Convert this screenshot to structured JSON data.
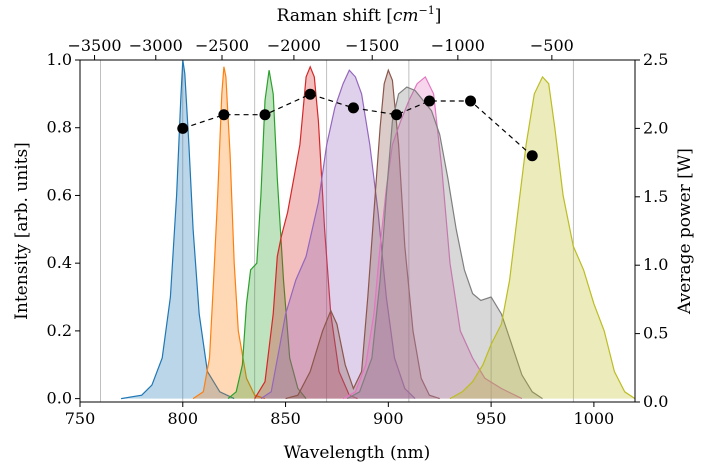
{
  "chart_data": {
    "type": "area",
    "xlabel": "Wavelength (nm)",
    "ylabel": "Intensity [arb. units]",
    "y2label": "Average power [W]",
    "top_xlabel_prefix": "Raman shift [",
    "top_xlabel_unit": "cm",
    "top_xlabel_exp": "−1",
    "top_xlabel_suffix": "]",
    "xlim": [
      750,
      1020
    ],
    "ylim": [
      -0.01,
      1.0
    ],
    "y2lim": [
      0.0,
      2.5
    ],
    "x_ticks": [
      750,
      800,
      850,
      900,
      950,
      1000
    ],
    "x_tick_labels": [
      "750",
      "800",
      "850",
      "900",
      "950",
      "1000"
    ],
    "y_ticks": [
      0.0,
      0.2,
      0.4,
      0.6,
      0.8,
      1.0
    ],
    "y_tick_labels": [
      "0.0",
      "0.2",
      "0.4",
      "0.6",
      "0.8",
      "1.0"
    ],
    "y2_ticks": [
      0.0,
      0.5,
      1.0,
      1.5,
      2.0,
      2.5
    ],
    "y2_tick_labels": [
      "0.0",
      "0.5",
      "1.0",
      "1.5",
      "2.0",
      "2.5"
    ],
    "raman_pump_nm": 1030,
    "top_ticks": [
      -3500,
      -3000,
      -2500,
      -2000,
      -1500,
      -1000,
      -500
    ],
    "top_tick_labels": [
      "−3500",
      "−3000",
      "−2500",
      "−2000",
      "−1500",
      "−1000",
      "−500"
    ],
    "grid_x": [
      760,
      800,
      835,
      870,
      910,
      950,
      990
    ],
    "series": [
      {
        "color": "#1f77b4",
        "points": [
          [
            770,
            0
          ],
          [
            780,
            0.01
          ],
          [
            785,
            0.04
          ],
          [
            790,
            0.12
          ],
          [
            794,
            0.3
          ],
          [
            797,
            0.6
          ],
          [
            799,
            0.88
          ],
          [
            800,
            1.0
          ],
          [
            801,
            0.96
          ],
          [
            803,
            0.75
          ],
          [
            805,
            0.5
          ],
          [
            808,
            0.25
          ],
          [
            812,
            0.08
          ],
          [
            818,
            0.02
          ],
          [
            825,
            0
          ]
        ]
      },
      {
        "color": "#ff7f0e",
        "points": [
          [
            805,
            0
          ],
          [
            810,
            0.02
          ],
          [
            813,
            0.12
          ],
          [
            815,
            0.35
          ],
          [
            817,
            0.6
          ],
          [
            819,
            0.9
          ],
          [
            820,
            0.98
          ],
          [
            821,
            0.95
          ],
          [
            823,
            0.72
          ],
          [
            825,
            0.4
          ],
          [
            827,
            0.2
          ],
          [
            831,
            0.06
          ],
          [
            835,
            0.01
          ],
          [
            840,
            0
          ]
        ]
      },
      {
        "color": "#2ca02c",
        "points": [
          [
            822,
            0
          ],
          [
            826,
            0.02
          ],
          [
            829,
            0.1
          ],
          [
            831,
            0.28
          ],
          [
            833,
            0.38
          ],
          [
            836,
            0.4
          ],
          [
            838,
            0.6
          ],
          [
            840,
            0.88
          ],
          [
            842,
            0.97
          ],
          [
            844,
            0.9
          ],
          [
            846,
            0.65
          ],
          [
            849,
            0.35
          ],
          [
            852,
            0.12
          ],
          [
            856,
            0.03
          ],
          [
            860,
            0
          ]
        ]
      },
      {
        "color": "#d62728",
        "points": [
          [
            835,
            0
          ],
          [
            840,
            0.05
          ],
          [
            844,
            0.25
          ],
          [
            846,
            0.42
          ],
          [
            848,
            0.48
          ],
          [
            851,
            0.55
          ],
          [
            854,
            0.65
          ],
          [
            857,
            0.75
          ],
          [
            860,
            0.95
          ],
          [
            862,
            0.98
          ],
          [
            864,
            0.95
          ],
          [
            866,
            0.82
          ],
          [
            869,
            0.5
          ],
          [
            872,
            0.25
          ],
          [
            876,
            0.08
          ],
          [
            881,
            0.01
          ],
          [
            885,
            0
          ]
        ]
      },
      {
        "color": "#9467bd",
        "points": [
          [
            838,
            0
          ],
          [
            843,
            0.02
          ],
          [
            847,
            0.15
          ],
          [
            850,
            0.25
          ],
          [
            855,
            0.35
          ],
          [
            860,
            0.42
          ],
          [
            866,
            0.58
          ],
          [
            870,
            0.75
          ],
          [
            874,
            0.86
          ],
          [
            878,
            0.93
          ],
          [
            881,
            0.97
          ],
          [
            884,
            0.95
          ],
          [
            887,
            0.9
          ],
          [
            891,
            0.75
          ],
          [
            895,
            0.55
          ],
          [
            899,
            0.3
          ],
          [
            903,
            0.12
          ],
          [
            908,
            0.03
          ],
          [
            913,
            0
          ]
        ]
      },
      {
        "color": "#8c564b",
        "points": [
          [
            850,
            0
          ],
          [
            856,
            0.01
          ],
          [
            862,
            0.08
          ],
          [
            868,
            0.2
          ],
          [
            872,
            0.26
          ],
          [
            875,
            0.22
          ],
          [
            879,
            0.1
          ],
          [
            883,
            0.03
          ],
          [
            887,
            0.08
          ],
          [
            890,
            0.3
          ],
          [
            893,
            0.55
          ],
          [
            896,
            0.8
          ],
          [
            898,
            0.93
          ],
          [
            900,
            0.97
          ],
          [
            902,
            0.94
          ],
          [
            905,
            0.75
          ],
          [
            908,
            0.45
          ],
          [
            912,
            0.2
          ],
          [
            916,
            0.06
          ],
          [
            920,
            0.01
          ],
          [
            925,
            0
          ]
        ]
      },
      {
        "color": "#e377c2",
        "points": [
          [
            878,
            0
          ],
          [
            884,
            0.02
          ],
          [
            889,
            0.1
          ],
          [
            893,
            0.25
          ],
          [
            896,
            0.45
          ],
          [
            899,
            0.62
          ],
          [
            902,
            0.75
          ],
          [
            906,
            0.82
          ],
          [
            910,
            0.88
          ],
          [
            914,
            0.93
          ],
          [
            918,
            0.95
          ],
          [
            922,
            0.9
          ],
          [
            926,
            0.68
          ],
          [
            930,
            0.4
          ],
          [
            935,
            0.2
          ],
          [
            941,
            0.12
          ],
          [
            947,
            0.06
          ],
          [
            955,
            0.03
          ],
          [
            965,
            0
          ]
        ]
      },
      {
        "color": "#7f7f7f",
        "points": [
          [
            880,
            0
          ],
          [
            886,
            0.02
          ],
          [
            892,
            0.12
          ],
          [
            896,
            0.35
          ],
          [
            899,
            0.6
          ],
          [
            902,
            0.82
          ],
          [
            905,
            0.9
          ],
          [
            909,
            0.92
          ],
          [
            913,
            0.91
          ],
          [
            917,
            0.88
          ],
          [
            921,
            0.85
          ],
          [
            925,
            0.78
          ],
          [
            929,
            0.65
          ],
          [
            933,
            0.5
          ],
          [
            937,
            0.38
          ],
          [
            941,
            0.31
          ],
          [
            945,
            0.29
          ],
          [
            950,
            0.3
          ],
          [
            955,
            0.25
          ],
          [
            960,
            0.16
          ],
          [
            965,
            0.07
          ],
          [
            970,
            0.02
          ],
          [
            975,
            0
          ]
        ]
      },
      {
        "color": "#bcbd22",
        "points": [
          [
            930,
            0
          ],
          [
            936,
            0.02
          ],
          [
            941,
            0.05
          ],
          [
            946,
            0.1
          ],
          [
            950,
            0.16
          ],
          [
            955,
            0.22
          ],
          [
            959,
            0.35
          ],
          [
            963,
            0.55
          ],
          [
            967,
            0.75
          ],
          [
            971,
            0.9
          ],
          [
            975,
            0.95
          ],
          [
            978,
            0.93
          ],
          [
            981,
            0.8
          ],
          [
            985,
            0.6
          ],
          [
            990,
            0.45
          ],
          [
            995,
            0.38
          ],
          [
            1000,
            0.28
          ],
          [
            1005,
            0.2
          ],
          [
            1010,
            0.08
          ],
          [
            1015,
            0.02
          ],
          [
            1020,
            0
          ]
        ]
      }
    ],
    "power_series": {
      "x": [
        800,
        820,
        840,
        862,
        883,
        904,
        920,
        940,
        970
      ],
      "y": [
        2.0,
        2.1,
        2.1,
        2.25,
        2.15,
        2.1,
        2.2,
        2.2,
        1.8
      ]
    }
  }
}
